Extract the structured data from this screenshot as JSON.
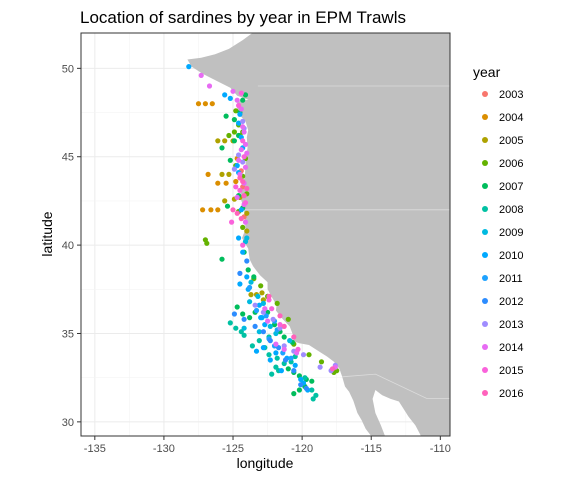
{
  "chart_data": {
    "type": "scatter",
    "title": "Location of sardines by year in EPM Trawls",
    "xlabel": "longitude",
    "ylabel": "latitude",
    "xlim": [
      -136,
      -109.3
    ],
    "ylim": [
      29.2,
      52
    ],
    "x_ticks": [
      -135,
      -130,
      -125,
      -120,
      -115,
      -110
    ],
    "x_tick_labels": [
      "-135",
      "-130",
      "-125",
      "-120",
      "-115",
      "-110"
    ],
    "y_ticks": [
      30,
      35,
      40,
      45,
      50
    ],
    "y_tick_labels": [
      "30",
      "35",
      "40",
      "45",
      "50"
    ],
    "grid": true,
    "legend_title": "year",
    "legend_position": "right",
    "land_color": "#c0c0c0",
    "series": [
      {
        "name": "2003",
        "color": "#F8766D",
        "points": [
          [
            -124.3,
            43.3
          ],
          [
            -124.2,
            41.6
          ],
          [
            -124.4,
            44.2
          ]
        ]
      },
      {
        "name": "2004",
        "color": "#DB8E00",
        "points": [
          [
            -127.5,
            48.0
          ],
          [
            -127,
            48.0
          ],
          [
            -126.5,
            48.0
          ],
          [
            -127.2,
            42.0
          ],
          [
            -126.6,
            42.0
          ],
          [
            -126.1,
            42.0
          ],
          [
            -126.8,
            44.0
          ],
          [
            -126.1,
            43.5
          ],
          [
            -125.5,
            43.5
          ],
          [
            -124.8,
            43.6
          ],
          [
            -124.7,
            44.9
          ]
        ]
      },
      {
        "name": "2005",
        "color": "#AEA200",
        "points": [
          [
            -126.1,
            45.9
          ],
          [
            -125.6,
            45.9
          ],
          [
            -125.0,
            45.9
          ],
          [
            -124.5,
            46.2
          ],
          [
            -125.8,
            44.0
          ],
          [
            -125.3,
            44.0
          ],
          [
            -125.6,
            42.5
          ],
          [
            -124.9,
            42.6
          ],
          [
            -124.5,
            42.7
          ],
          [
            -124.0,
            41.8
          ],
          [
            -124.0,
            40.8
          ],
          [
            -123.7,
            37.2
          ],
          [
            -123.3,
            37.2
          ],
          [
            -122.9,
            37.3
          ],
          [
            -122.8,
            36.9
          ]
        ]
      },
      {
        "name": "2006",
        "color": "#64B200",
        "points": [
          [
            -124.8,
            47.6
          ],
          [
            -124.6,
            46.8
          ],
          [
            -124.3,
            46.4
          ],
          [
            -124.9,
            46.4
          ],
          [
            -125.3,
            46.2
          ],
          [
            -124.1,
            44.9
          ],
          [
            -124.8,
            44.5
          ],
          [
            -124.3,
            43.9
          ],
          [
            -124.0,
            42.9
          ],
          [
            -124.6,
            41.9
          ],
          [
            -124.3,
            41.0
          ],
          [
            -127.0,
            40.3
          ],
          [
            -126.9,
            40.1
          ],
          [
            -123.5,
            38.1
          ],
          [
            -123.0,
            37.7
          ],
          [
            -122.5,
            37.1
          ],
          [
            -121.8,
            36.7
          ],
          [
            -121.0,
            35.8
          ],
          [
            -120.6,
            34.4
          ],
          [
            -119.5,
            33.8
          ],
          [
            -118.6,
            33.4
          ],
          [
            -117.7,
            32.8
          ],
          [
            -117.5,
            32.9
          ]
        ]
      },
      {
        "name": "2007",
        "color": "#00BD5C",
        "points": [
          [
            -124.1,
            48.5
          ],
          [
            -124.3,
            48.2
          ],
          [
            -124.5,
            47.5
          ],
          [
            -125.5,
            47.3
          ],
          [
            -124.9,
            47.1
          ],
          [
            -124.6,
            46.2
          ],
          [
            -124.9,
            45.9
          ],
          [
            -125.8,
            45.5
          ],
          [
            -125.2,
            44.8
          ],
          [
            -125.4,
            42.2
          ],
          [
            -124.6,
            42.8
          ],
          [
            -124.3,
            42.1
          ],
          [
            -125.8,
            39.2
          ],
          [
            -124.2,
            39.6
          ],
          [
            -123.9,
            38.6
          ],
          [
            -123.5,
            38.2
          ],
          [
            -124.7,
            36.5
          ],
          [
            -124.3,
            36.1
          ],
          [
            -123.8,
            35.9
          ],
          [
            -123.4,
            36.2
          ],
          [
            -122.5,
            36.2
          ],
          [
            -122.0,
            35.5
          ],
          [
            -121.6,
            35.1
          ],
          [
            -121.3,
            34.8
          ],
          [
            -120.7,
            34.5
          ],
          [
            -121.0,
            33.0
          ],
          [
            -120.6,
            32.8
          ],
          [
            -120.2,
            32.6
          ],
          [
            -119.7,
            32.4
          ],
          [
            -119.3,
            32.3
          ],
          [
            -120.6,
            31.6
          ],
          [
            -120.2,
            31.8
          ],
          [
            -119.8,
            32.0
          ]
        ]
      },
      {
        "name": "2008",
        "color": "#00C1A3",
        "points": [
          [
            -125.2,
            35.6
          ],
          [
            -124.8,
            35.3
          ],
          [
            -124.4,
            35.1
          ],
          [
            -124.2,
            34.9
          ],
          [
            -123.6,
            34.3
          ],
          [
            -123.1,
            34.6
          ],
          [
            -122.4,
            34.8
          ],
          [
            -122.7,
            34.2
          ],
          [
            -122.4,
            33.8
          ],
          [
            -121.8,
            33.6
          ],
          [
            -121.3,
            33.3
          ],
          [
            -121.7,
            32.9
          ],
          [
            -122.2,
            32.7
          ],
          [
            -121.9,
            33.1
          ],
          [
            -120.8,
            33.4
          ],
          [
            -120.5,
            33.7
          ],
          [
            -119.8,
            32.5
          ],
          [
            -119.3,
            31.8
          ],
          [
            -119.0,
            31.5
          ],
          [
            -119.2,
            31.3
          ]
        ]
      },
      {
        "name": "2009",
        "color": "#00BAE0",
        "points": [
          [
            -124.0,
            40.4
          ],
          [
            -124.1,
            40.2
          ],
          [
            -123.7,
            37.9
          ],
          [
            -123.2,
            37.1
          ],
          [
            -122.8,
            36.7
          ],
          [
            -123.8,
            36.8
          ],
          [
            -124.2,
            35.3
          ],
          [
            -123.1,
            35.1
          ],
          [
            -122.3,
            35.4
          ],
          [
            -121.9,
            35.0
          ],
          [
            -120.9,
            34.6
          ]
        ]
      },
      {
        "name": "2010",
        "color": "#00A9FF",
        "points": [
          [
            -128.2,
            50.1
          ],
          [
            -125.6,
            48.5
          ],
          [
            -125.2,
            48.3
          ],
          [
            -124.5,
            47.4
          ],
          [
            -124.6,
            46.9
          ],
          [
            -124.4,
            46.1
          ],
          [
            -124.3,
            45.5
          ],
          [
            -124.7,
            44.5
          ],
          [
            -124.6,
            44.1
          ],
          [
            -124.4,
            42.0
          ],
          [
            -124.6,
            40.4
          ],
          [
            -124.3,
            39.6
          ],
          [
            -124.0,
            38.2
          ],
          [
            -124.5,
            37.8
          ],
          [
            -123.9,
            37.5
          ],
          [
            -123.1,
            36.6
          ],
          [
            -123.0,
            35.9
          ],
          [
            -122.7,
            35.5
          ],
          [
            -123.3,
            34.0
          ],
          [
            -122.8,
            34.2
          ],
          [
            -122.3,
            33.5
          ],
          [
            -121.5,
            32.9
          ],
          [
            -121.9,
            33.9
          ],
          [
            -121.1,
            33.6
          ],
          [
            -120.5,
            33.2
          ],
          [
            -120.1,
            32.4
          ],
          [
            -119.6,
            31.8
          ],
          [
            -119.9,
            32.2
          ],
          [
            -122.9,
            35.9
          ]
        ]
      },
      {
        "name": "2011",
        "color": "#1EA2FF",
        "points": [
          [
            -123.8,
            37.6
          ],
          [
            -123.3,
            36.3
          ],
          [
            -122.6,
            36.0
          ],
          [
            -122.0,
            35.7
          ],
          [
            -121.8,
            35.2
          ],
          [
            -122.4,
            34.7
          ],
          [
            -122.0,
            34.3
          ],
          [
            -121.4,
            33.9
          ],
          [
            -120.8,
            33.6
          ]
        ]
      },
      {
        "name": "2012",
        "color": "#2C8CFF",
        "points": [
          [
            -124.9,
            36.1
          ],
          [
            -124.2,
            35.8
          ],
          [
            -123.4,
            35.4
          ],
          [
            -122.8,
            35.1
          ],
          [
            -122.3,
            34.6
          ],
          [
            -121.7,
            34.2
          ],
          [
            -121.2,
            33.5
          ],
          [
            -120.6,
            32.9
          ],
          [
            -120.1,
            32.1
          ],
          [
            -119.7,
            31.9
          ],
          [
            -124.5,
            38.4
          ],
          [
            -124.0,
            39.1
          ]
        ]
      },
      {
        "name": "2013",
        "color": "#9F8CFF",
        "points": [
          [
            -124.6,
            45.1
          ],
          [
            -124.3,
            44.7
          ],
          [
            -124.9,
            44.3
          ],
          [
            -124.3,
            47.0
          ],
          [
            -124.2,
            46.6
          ],
          [
            -123.4,
            36.6
          ],
          [
            -122.8,
            36.2
          ],
          [
            -122.1,
            35.8
          ],
          [
            -121.6,
            35.3
          ],
          [
            -121.3,
            34.3
          ],
          [
            -120.6,
            34.0
          ],
          [
            -119.9,
            33.8
          ],
          [
            -118.7,
            33.1
          ],
          [
            -117.9,
            32.9
          ],
          [
            -117.6,
            33.2
          ]
        ]
      },
      {
        "name": "2014",
        "color": "#E76BF3",
        "points": [
          [
            -127.3,
            49.6
          ],
          [
            -126.7,
            49.0
          ],
          [
            -125.0,
            48.7
          ],
          [
            -124.7,
            48.2
          ],
          [
            -124.4,
            47.7
          ],
          [
            -124.3,
            46.7
          ],
          [
            -124.2,
            46.4
          ],
          [
            -124.1,
            45.7
          ],
          [
            -124.4,
            45.4
          ],
          [
            -124.0,
            45.2
          ],
          [
            -124.6,
            44.8
          ],
          [
            -124.1,
            44.4
          ],
          [
            -124.5,
            44.0
          ],
          [
            -124.2,
            43.5
          ],
          [
            -124.7,
            42.7
          ],
          [
            -124.2,
            42.3
          ],
          [
            -124.1,
            41.3
          ],
          [
            -122.7,
            36.4
          ],
          [
            -122.5,
            35.7
          ],
          [
            -121.9,
            34.4
          ],
          [
            -121.3,
            34.1
          ],
          [
            -120.4,
            33.9
          ],
          [
            -117.6,
            33.1
          ]
        ]
      },
      {
        "name": "2015",
        "color": "#FA62DB",
        "points": [
          [
            -124.4,
            48.6
          ],
          [
            -124.6,
            47.9
          ],
          [
            -124.3,
            45.9
          ],
          [
            -124.2,
            45.0
          ],
          [
            -124.5,
            43.1
          ],
          [
            -124.1,
            42.4
          ],
          [
            -124.8,
            43.3
          ],
          [
            -125.1,
            41.3
          ],
          [
            -124.3,
            40.0
          ],
          [
            -122.4,
            36.9
          ],
          [
            -122.2,
            36.4
          ],
          [
            -121.6,
            35.5
          ],
          [
            -120.3,
            34.1
          ]
        ]
      },
      {
        "name": "2016",
        "color": "#FF62BC",
        "points": [
          [
            -124.5,
            43.8
          ],
          [
            -124.3,
            43.6
          ],
          [
            -124.0,
            43.2
          ],
          [
            -124.2,
            42.8
          ],
          [
            -125.0,
            42.0
          ],
          [
            -124.7,
            41.8
          ],
          [
            -124.4,
            41.5
          ],
          [
            -122.4,
            37.1
          ],
          [
            -121.6,
            36.0
          ],
          [
            -121.3,
            35.4
          ],
          [
            -120.6,
            34.8
          ],
          [
            -117.8,
            33.0
          ]
        ]
      }
    ]
  }
}
